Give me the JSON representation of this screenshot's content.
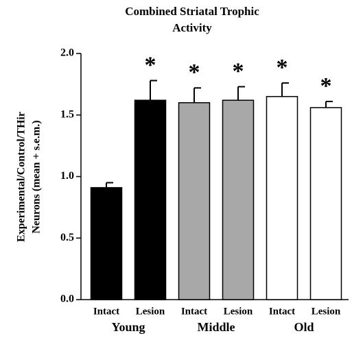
{
  "chart_data": {
    "type": "bar",
    "title": [
      "Combined Striatal Trophic",
      "Activity"
    ],
    "ylabel": [
      "Experimental/Control/THir",
      "Neurons (mean + s.e.m.)"
    ],
    "categories": [
      "Intact",
      "Lesion",
      "Intact",
      "Lesion",
      "Intact",
      "Lesion"
    ],
    "groups": [
      "Young",
      "Middle",
      "Old"
    ],
    "values": [
      0.91,
      1.62,
      1.6,
      1.62,
      1.65,
      1.56
    ],
    "errors": [
      0.04,
      0.16,
      0.12,
      0.11,
      0.11,
      0.05
    ],
    "significance": [
      null,
      "*",
      "*",
      "*",
      "*",
      "*"
    ],
    "colors": [
      "#000000",
      "#000000",
      "#a8a8a8",
      "#a8a8a8",
      "#ffffff",
      "#ffffff"
    ],
    "ylim": [
      0,
      2
    ],
    "yticks": [
      {
        "value": 0,
        "label": "0.0"
      },
      {
        "value": 0.5,
        "label": "0.5"
      },
      {
        "value": 1,
        "label": "1.0"
      },
      {
        "value": 1.5,
        "label": "1.5"
      },
      {
        "value": 2,
        "label": "2.0"
      }
    ]
  }
}
